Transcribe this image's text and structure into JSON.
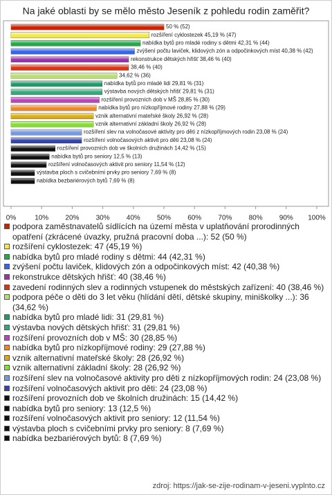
{
  "chart_data": {
    "type": "bar",
    "orientation": "horizontal",
    "title": "Na jaké oblasti by se mělo město Jeseník z pohledu rodin zaměřit?",
    "values": [
      50,
      45.19,
      42.31,
      40.38,
      38.46,
      38.46,
      34.62,
      29.81,
      29.81,
      28.85,
      27.88,
      26.92,
      26.92,
      23.08,
      23.08,
      14.42,
      12.5,
      11.54,
      7.69,
      7.69
    ],
    "value_labels": [
      "50 % (52)",
      "rozšíření cyklostezek 45,19 % (47)",
      "nabídka bytů pro mladé rodiny s dětmi 42,31 % (44)",
      "zvýšení počtu laviček, klidových zón a odpočinkových míst 40,38 % (42)",
      "rekonstrukce dětských hřišť 38,46 % (40)",
      "38,46 % (40)",
      "34,62 % (36)",
      "nabídka bytů pro mladé lidi 29,81 % (31)",
      "výstavba nových dětských hřišť 29,81 % (31)",
      "rozšíření provozních dob v MŠ 28,85 % (30)",
      "nabídka bytů pro nízkopříjmové rodiny 27,88 % (29)",
      "vznik alternativní mateřské školy 26,92 % (28)",
      "vznik alternativní základní školy 26,92 % (28)",
      "rozšíření slev na volnočasové aktivity pro děti z nízkopříjmových rodin 23,08 % (24)",
      "rozšíření volnočasových aktivit pro děti 23,08 % (24)",
      "rozšíření provozních dob ve školních družinách 14,42 % (15)",
      "nabídka bytů pro seniory 12,5 % (13)",
      "rozšíření volnočasových aktivit pro seniory 11,54 % (12)",
      "výstavba ploch s cvičebními prvky pro seniory 7,69 % (8)",
      "nabídka bezbariérových bytů 7,69 % (8)"
    ],
    "colors": [
      "#cc2200",
      "#f5e94a",
      "#22aa44",
      "#3366ee",
      "#9933aa",
      "#dd3311",
      "#bbdd77",
      "#229966",
      "#33aa77",
      "#bb44bb",
      "#ee8822",
      "#ddaa11",
      "#88dd33",
      "#7799dd",
      "#3344aa",
      "#111111",
      "#111111",
      "#111111",
      "#111111",
      "#111111"
    ],
    "legend": [
      "podpora zaměstnavatelů sídlících na území města v uplatňování prorodinných opatření (zkrácené úvazky, pružná pracovní doba ...): 52 (50 %)",
      "rozšíření cyklostezek: 47 (45,19 %)",
      "nabídka bytů pro mladé rodiny s dětmi: 44 (42,31 %)",
      "zvýšení počtu laviček, klidových zón a odpočinkových míst: 42 (40,38 %)",
      "rekonstrukce dětských hřišť: 40 (38,46 %)",
      "zavedení rodinných slev a rodinných vstupenek do městských zařízení: 40 (38,46 %)",
      "podpora péče o děti do 3 let věku (hlídání dětí, dětské skupiny, miniškolky ...): 36 (34,62 %)",
      "nabídka bytů pro mladé lidi: 31 (29,81 %)",
      "výstavba nových dětských hřišť: 31 (29,81 %)",
      "rozšíření provozních dob v MŠ: 30 (28,85 %)",
      "nabídka bytů pro nízkopříjmové rodiny: 29 (27,88 %)",
      "vznik alternativní mateřské školy: 28 (26,92 %)",
      "vznik alternativní základní školy: 28 (26,92 %)",
      "rozšíření slev na volnočasové aktivity pro děti z nízkopříjmových rodin: 24 (23,08 %)",
      "rozšíření volnočasových aktivit pro děti: 24 (23,08 %)",
      "rozšíření provozních dob ve školních družinách: 15 (14,42 %)",
      "nabídka bytů pro seniory: 13 (12,5 %)",
      "rozšíření volnočasových aktivit pro seniory: 12 (11,54 %)",
      "výstavba ploch s cvičebními prvky pro seniory: 8 (7,69 %)",
      "nabídka bezbariérových bytů: 8 (7,69 %)"
    ],
    "xlim": [
      0,
      100
    ],
    "xticks": [
      {
        "value": 0,
        "label": "0%"
      },
      {
        "value": 10,
        "label": "10%"
      },
      {
        "value": 20,
        "label": "20%"
      },
      {
        "value": 30,
        "label": "30%"
      },
      {
        "value": 40,
        "label": "40%"
      },
      {
        "value": 50,
        "label": "50%"
      },
      {
        "value": 60,
        "label": "60%"
      },
      {
        "value": 70,
        "label": "70%"
      },
      {
        "value": 80,
        "label": "80%"
      },
      {
        "value": 90,
        "label": "90%"
      },
      {
        "value": 100,
        "label": "100%"
      }
    ],
    "source": "zdroj: https://jak-se-zije-rodinam-v-jeseni.vyplnto.cz"
  }
}
